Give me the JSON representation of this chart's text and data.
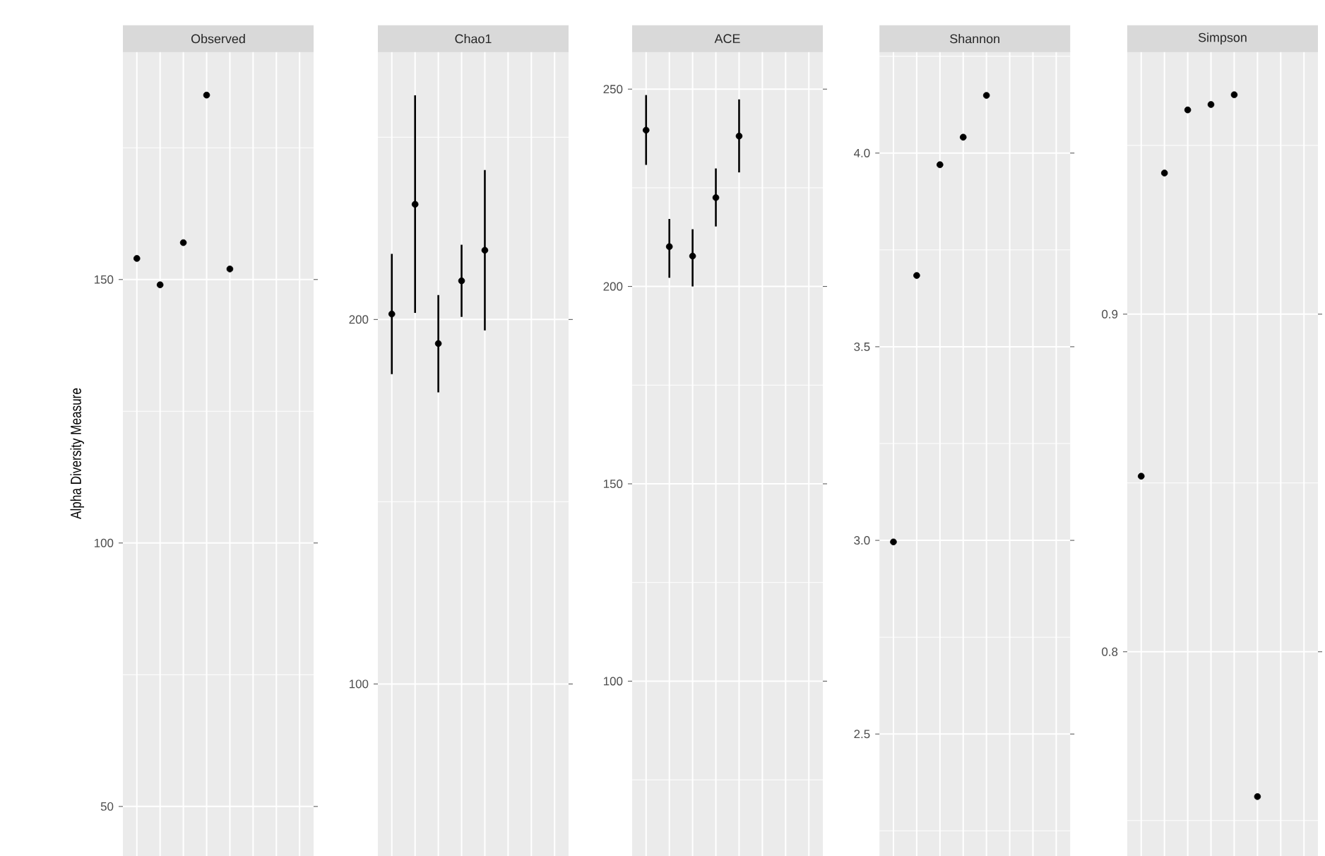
{
  "chart_data": [
    {
      "type": "scatter",
      "title": "Observed",
      "ylabel": "Alpha Diversity Measure",
      "categories": [
        null,
        null,
        null,
        null,
        null,
        null,
        null,
        null
      ],
      "values": [
        154,
        149,
        157,
        185,
        152,
        null,
        null,
        null
      ],
      "color": "#000000",
      "marker": "circle",
      "ylim": [
        40.6,
        193.4
      ],
      "yticks": [
        50,
        {
          "value": 75,
          "label": null
        },
        100,
        {
          "value": 125,
          "label": null
        },
        150,
        {
          "value": 175,
          "label": null
        }
      ],
      "grid": true,
      "tick_labels": "y"
    },
    {
      "type": "scatter",
      "title": "Chao1",
      "categories": [
        null,
        null,
        null,
        null,
        null,
        null,
        null,
        null
      ],
      "values": [
        201.5,
        231.6,
        193.4,
        210.6,
        219.0,
        null,
        null,
        null
      ],
      "errors": [
        [
          185,
          218
        ],
        [
          201.8,
          261.5
        ],
        [
          180,
          206.7
        ],
        [
          200.7,
          220.5
        ],
        [
          197,
          241
        ],
        null,
        null,
        null
      ],
      "color": "#000000",
      "marker": "circle",
      "ylim": [
        52.8,
        273.7
      ],
      "yticks": [
        100,
        {
          "value": 150,
          "label": null
        },
        200,
        {
          "value": 250,
          "label": null
        }
      ],
      "grid": true,
      "tick_labels": "y"
    },
    {
      "type": "scatter",
      "title": "ACE",
      "categories": [
        null,
        null,
        null,
        null,
        null,
        null,
        null,
        null
      ],
      "values": [
        239.6,
        210.1,
        207.7,
        222.5,
        238.1,
        null,
        null,
        null
      ],
      "errors": [
        [
          230.8,
          248.5
        ],
        [
          202.2,
          217.1
        ],
        [
          200,
          214.5
        ],
        [
          215.2,
          229.9
        ],
        [
          228.9,
          247.4
        ],
        null,
        null,
        null
      ],
      "color": "#000000",
      "marker": "circle",
      "ylim": [
        55.7,
        259.7
      ],
      "yticks": [
        {
          "value": 75,
          "label": null
        },
        100,
        {
          "value": 125,
          "label": null
        },
        150,
        {
          "value": 175,
          "label": null
        },
        200,
        {
          "value": 225,
          "label": null
        },
        250
      ],
      "grid": true,
      "tick_labels": "y"
    },
    {
      "type": "scatter",
      "title": "Shannon",
      "categories": [
        null,
        null,
        null,
        null,
        null,
        null,
        null,
        null
      ],
      "values": [
        2.996,
        3.684,
        3.97,
        4.041,
        4.149,
        null,
        null,
        null
      ],
      "color": "#000000",
      "marker": "circle",
      "ylim": [
        2.185,
        4.264
      ],
      "yticks": [
        {
          "value": 2.25,
          "label": null
        },
        {
          "value": 2.5,
          "label": "2.5"
        },
        {
          "value": 2.75,
          "label": null
        },
        {
          "value": 3,
          "label": "3.0"
        },
        {
          "value": 3.25,
          "label": null
        },
        {
          "value": 3.5,
          "label": "3.5"
        },
        {
          "value": 3.75,
          "label": null
        },
        {
          "value": 4,
          "label": "4.0"
        },
        {
          "value": 4.25,
          "label": null
        }
      ],
      "grid": true,
      "tick_labels": "y"
    },
    {
      "type": "scatter",
      "title": "Simpson",
      "categories": [
        null,
        null,
        null,
        null,
        null,
        null,
        null,
        null
      ],
      "values": [
        0.852,
        0.9418,
        0.9605,
        0.9621,
        0.965,
        0.7571,
        null,
        null
      ],
      "color": "#000000",
      "marker": "circle",
      "ylim": [
        0.7395,
        0.978
      ],
      "yticks": [
        {
          "value": 0.75,
          "label": null
        },
        0.8,
        {
          "value": 0.85,
          "label": null
        },
        0.9,
        {
          "value": 0.95,
          "label": null
        }
      ],
      "grid": true,
      "tick_labels": "y"
    }
  ]
}
